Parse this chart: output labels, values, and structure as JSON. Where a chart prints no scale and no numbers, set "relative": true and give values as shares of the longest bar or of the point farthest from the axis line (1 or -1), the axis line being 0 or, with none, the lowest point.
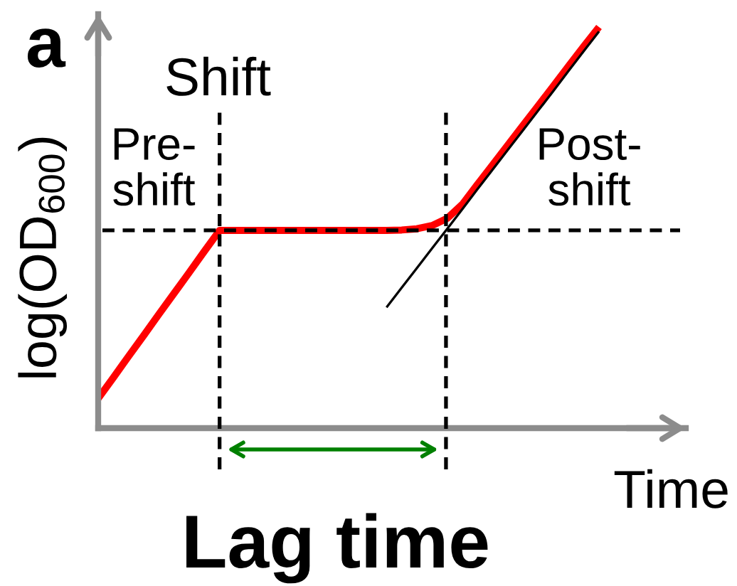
{
  "chart_data": {
    "type": "line",
    "relative": true,
    "xlabel": "Time",
    "ylabel": "log(OD$_{600}$)",
    "categories": [
      null,
      null,
      null,
      null,
      null,
      null,
      null,
      null,
      null,
      null,
      null,
      null,
      null,
      null,
      null,
      null,
      null,
      null,
      null,
      null,
      null,
      null,
      null,
      null,
      null,
      null,
      null,
      null,
      null,
      null,
      null,
      null,
      null,
      null
    ],
    "series": [
      {
        "color": "#ff0000",
        "values": [
          0.074,
          0.126,
          0.179,
          0.231,
          0.284,
          0.336,
          0.388,
          0.441,
          0.493,
          0.493,
          0.493,
          0.493,
          0.493,
          0.493,
          0.493,
          0.493,
          0.493,
          0.493,
          0.493,
          0.493,
          0.494,
          0.497,
          0.505,
          0.523,
          0.558,
          0.608,
          0.657,
          0.706,
          0.755,
          0.804,
          0.853,
          0.903,
          0.952,
          1.0
        ]
      },
      {
        "color": "#000000",
        "values": [
          null,
          null,
          null,
          null,
          null,
          null,
          null,
          null,
          null,
          null,
          null,
          null,
          null,
          null,
          null,
          null,
          null,
          null,
          null,
          0.301,
          0.35,
          0.399,
          0.448,
          0.497,
          0.546,
          0.596,
          0.645,
          0.694,
          0.743,
          0.792,
          0.841,
          0.891,
          0.94,
          0.989
        ]
      }
    ],
    "ref_lines": [
      {
        "axis": "y",
        "value": 0.493,
        "color": "#000000",
        "line_style": "dashed"
      }
    ],
    "annotations": [
      "a",
      "Shift",
      "Pre-\nshift",
      "Post-\nshift",
      "Lag time"
    ]
  }
}
